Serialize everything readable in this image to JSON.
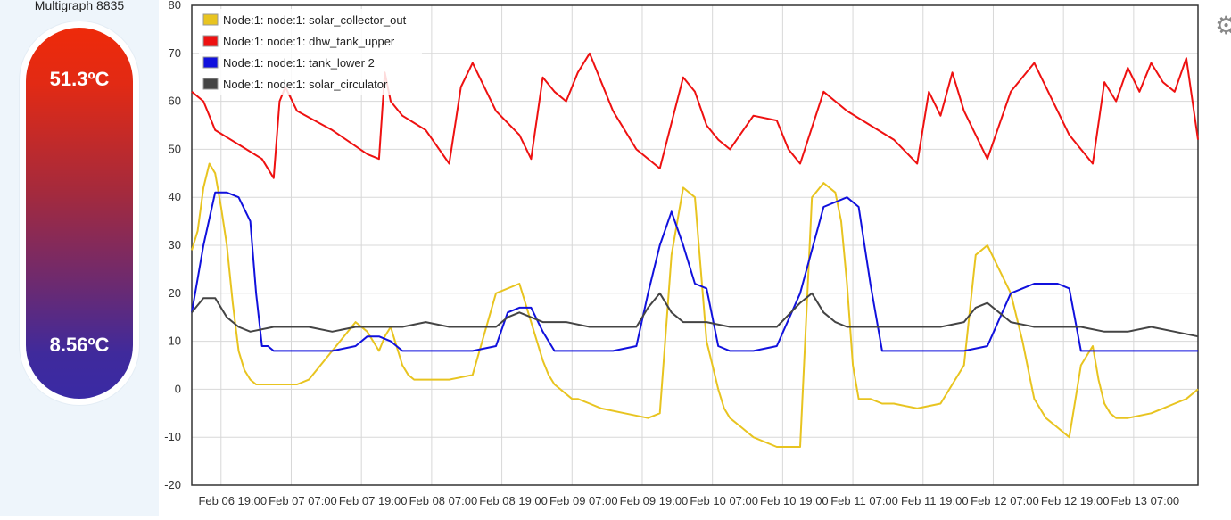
{
  "panel": {
    "title": "Multigraph 8835",
    "top_value": "51.3ºC",
    "bottom_value": "8.56ºC"
  },
  "toolbar": {
    "settings_icon": "gear-icon"
  },
  "chart_data": {
    "type": "line",
    "title": "",
    "xlabel": "",
    "ylabel": "",
    "ylim": [
      -20,
      80
    ],
    "yticks": [
      80,
      70,
      60,
      50,
      40,
      30,
      20,
      10,
      0,
      -10,
      -20
    ],
    "xticks": [
      "Feb 06 19:00",
      "Feb 07 07:00",
      "Feb 07 19:00",
      "Feb 08 07:00",
      "Feb 08 19:00",
      "Feb 09 07:00",
      "Feb 09 19:00",
      "Feb 10 07:00",
      "Feb 10 19:00",
      "Feb 11 07:00",
      "Feb 11 19:00",
      "Feb 12 07:00",
      "Feb 12 19:00",
      "Feb 13 07:00"
    ],
    "grid": true,
    "legend_position": "top-left",
    "x_hours_from_start_note": "x values are hours after Feb 06 14:00 (chart start)",
    "series": [
      {
        "name": "Node:1: node:1: solar_collector_out",
        "color": "#e8c420",
        "x": [
          0,
          1,
          2,
          3,
          4,
          5,
          6,
          7,
          8,
          9,
          10,
          11,
          12,
          14,
          16,
          18,
          20,
          24,
          28,
          30,
          32,
          33,
          34,
          35,
          36,
          37,
          38,
          40,
          42,
          44,
          48,
          52,
          56,
          58,
          60,
          61,
          62,
          63,
          64,
          65,
          66,
          68,
          70,
          74,
          78,
          80,
          82,
          84,
          86,
          87,
          88,
          89,
          90,
          91,
          92,
          94,
          96,
          100,
          104,
          106,
          108,
          110,
          111,
          112,
          113,
          114,
          115,
          116,
          118,
          120,
          124,
          128,
          132,
          134,
          136,
          138,
          140,
          141,
          142,
          143,
          144,
          145,
          146,
          148,
          150,
          152,
          154,
          155,
          156,
          157,
          158,
          160,
          164,
          166,
          168,
          170,
          172
        ],
        "values": [
          29,
          33,
          42,
          47,
          45,
          38,
          30,
          18,
          8,
          4,
          2,
          1,
          1,
          1,
          1,
          1,
          2,
          8,
          14,
          12,
          8,
          11,
          13,
          9,
          5,
          3,
          2,
          2,
          2,
          2,
          3,
          20,
          22,
          14,
          6,
          3,
          1,
          0,
          -1,
          -2,
          -2,
          -3,
          -4,
          -5,
          -6,
          -5,
          28,
          42,
          40,
          25,
          10,
          5,
          0,
          -4,
          -6,
          -8,
          -10,
          -12,
          -12,
          40,
          43,
          41,
          35,
          22,
          5,
          -2,
          -2,
          -2,
          -3,
          -3,
          -4,
          -3,
          5,
          28,
          30,
          25,
          20,
          15,
          10,
          4,
          -2,
          -4,
          -6,
          -8,
          -10,
          5,
          9,
          2,
          -3,
          -5,
          -6,
          -6,
          -5,
          -4,
          -3,
          -2,
          0
        ]
      },
      {
        "name": "Node:1: node:1: dhw_tank_upper",
        "color": "#ee1111",
        "values_note": "sawtooth between ~45 and ~70",
        "x": [
          0,
          2,
          4,
          8,
          12,
          14,
          15,
          16,
          18,
          24,
          30,
          32,
          33,
          34,
          36,
          40,
          44,
          46,
          48,
          52,
          56,
          58,
          60,
          62,
          64,
          66,
          68,
          72,
          76,
          80,
          84,
          86,
          88,
          90,
          92,
          96,
          100,
          102,
          104,
          108,
          112,
          116,
          120,
          124,
          126,
          128,
          130,
          132,
          136,
          140,
          144,
          148,
          150,
          152,
          154,
          156,
          158,
          160,
          162,
          164,
          166,
          168,
          170,
          172
        ],
        "values": [
          62,
          60,
          54,
          51,
          48,
          44,
          60,
          63,
          58,
          54,
          49,
          48,
          66,
          60,
          57,
          54,
          47,
          63,
          68,
          58,
          53,
          48,
          65,
          62,
          60,
          66,
          70,
          58,
          50,
          46,
          65,
          62,
          55,
          52,
          50,
          57,
          56,
          50,
          47,
          62,
          58,
          55,
          52,
          47,
          62,
          57,
          66,
          58,
          48,
          62,
          68,
          58,
          53,
          50,
          47,
          64,
          60,
          67,
          62,
          68,
          64,
          62,
          69,
          52
        ]
      },
      {
        "name": "Node:1: node:1: tank_lower 2",
        "color": "#1111dd",
        "x": [
          0,
          2,
          4,
          6,
          8,
          10,
          11,
          12,
          13,
          14,
          16,
          20,
          24,
          28,
          30,
          32,
          34,
          36,
          40,
          44,
          48,
          52,
          54,
          56,
          58,
          60,
          62,
          64,
          68,
          72,
          76,
          78,
          80,
          82,
          84,
          86,
          88,
          90,
          92,
          94,
          96,
          100,
          104,
          108,
          112,
          114,
          116,
          118,
          120,
          122,
          124,
          126,
          128,
          132,
          136,
          140,
          144,
          148,
          150,
          152,
          154,
          156,
          158,
          160,
          162,
          164,
          166,
          168,
          170,
          172
        ],
        "values": [
          16,
          30,
          41,
          41,
          40,
          35,
          20,
          9,
          9,
          8,
          8,
          8,
          8,
          9,
          11,
          11,
          10,
          8,
          8,
          8,
          8,
          9,
          16,
          17,
          17,
          12,
          8,
          8,
          8,
          8,
          9,
          20,
          30,
          37,
          30,
          22,
          21,
          9,
          8,
          8,
          8,
          9,
          20,
          38,
          40,
          38,
          22,
          8,
          8,
          8,
          8,
          8,
          8,
          8,
          9,
          20,
          22,
          22,
          21,
          8,
          8,
          8,
          8,
          8,
          8,
          8,
          8,
          8,
          8,
          8
        ]
      },
      {
        "name": "Node:1: node:1: solar_circulator",
        "color": "#444444",
        "x": [
          0,
          2,
          4,
          6,
          8,
          10,
          14,
          20,
          24,
          28,
          32,
          36,
          40,
          44,
          48,
          52,
          54,
          56,
          58,
          60,
          64,
          68,
          72,
          76,
          78,
          80,
          82,
          84,
          88,
          92,
          96,
          100,
          104,
          106,
          108,
          110,
          112,
          116,
          120,
          124,
          128,
          132,
          134,
          136,
          138,
          140,
          144,
          148,
          152,
          156,
          160,
          164,
          168,
          172
        ],
        "values": [
          16,
          19,
          19,
          15,
          13,
          12,
          13,
          13,
          12,
          13,
          13,
          13,
          14,
          13,
          13,
          13,
          15,
          16,
          15,
          14,
          14,
          13,
          13,
          13,
          17,
          20,
          16,
          14,
          14,
          13,
          13,
          13,
          18,
          20,
          16,
          14,
          13,
          13,
          13,
          13,
          13,
          14,
          17,
          18,
          16,
          14,
          13,
          13,
          13,
          12,
          12,
          13,
          12,
          11
        ]
      }
    ]
  }
}
